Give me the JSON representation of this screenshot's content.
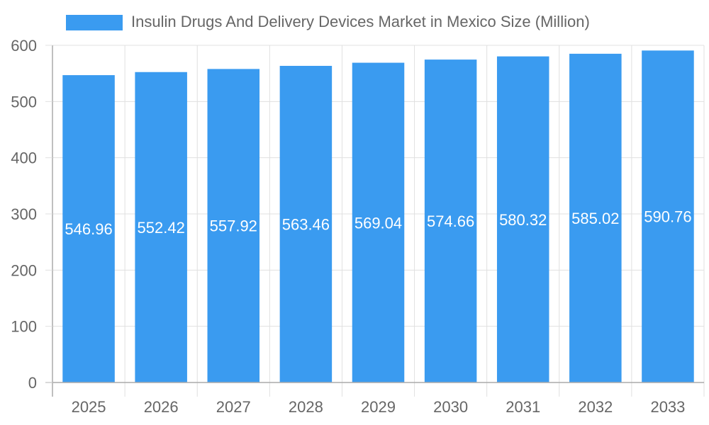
{
  "legend": {
    "label": "Insulin Drugs And Delivery Devices Market in Mexico Size (Million)",
    "color": "#3a9bf0"
  },
  "colors": {
    "bar": "#3a9bf0",
    "grid": "#e0e0e0",
    "axis": "#aaaaaa",
    "tick_text": "#666666",
    "data_label": "#ffffff"
  },
  "chart_data": {
    "type": "bar",
    "title": "Insulin Drugs And Delivery Devices Market in Mexico Size (Million)",
    "categories": [
      "2025",
      "2026",
      "2027",
      "2028",
      "2029",
      "2030",
      "2031",
      "2032",
      "2033"
    ],
    "values": [
      546.96,
      552.42,
      557.92,
      563.46,
      569.04,
      574.66,
      580.32,
      585.02,
      590.76
    ],
    "series": [
      {
        "name": "Insulin Drugs And Delivery Devices Market in Mexico Size (Million)",
        "values": [
          546.96,
          552.42,
          557.92,
          563.46,
          569.04,
          574.66,
          580.32,
          585.02,
          590.76
        ]
      }
    ],
    "xlabel": "",
    "ylabel": "",
    "ylim": [
      0,
      600
    ],
    "yticks": [
      0,
      100,
      200,
      300,
      400,
      500,
      600
    ],
    "grid": true,
    "legend_position": "top",
    "data_labels": true
  }
}
